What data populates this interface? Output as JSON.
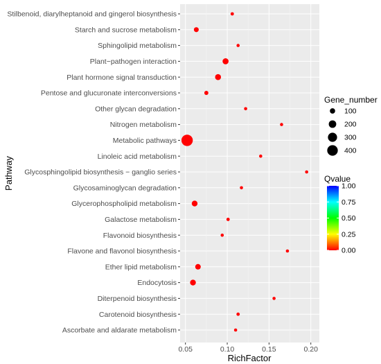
{
  "chart_data": {
    "type": "scatter",
    "xlabel": "RichFactor",
    "ylabel": "Pathway",
    "xlim": [
      0.04,
      0.2
    ],
    "xticks": [
      "0.05",
      "0.10",
      "0.15",
      "0.20"
    ],
    "xtick_values": [
      0.05,
      0.1,
      0.15,
      0.2
    ],
    "grid": true,
    "legend_placement": "right",
    "categories": [
      "Stilbenoid, diarylheptanoid and gingerol biosynthesis",
      "Starch and sucrose metabolism",
      "Sphingolipid metabolism",
      "Plant−pathogen interaction",
      "Plant hormone signal transduction",
      "Pentose and glucuronate interconversions",
      "Other glycan degradation",
      "Nitrogen metabolism",
      "Metabolic pathways",
      "Linoleic acid metabolism",
      "Glycosphingolipid biosynthesis − ganglio series",
      "Glycosaminoglycan degradation",
      "Glycerophospholipid metabolism",
      "Galactose metabolism",
      "Flavonoid biosynthesis",
      "Flavone and flavonol biosynthesis",
      "Ether lipid metabolism",
      "Endocytosis",
      "Diterpenoid biosynthesis",
      "Carotenoid biosynthesis",
      "Ascorbate and aldarate metabolism"
    ],
    "points": [
      {
        "pathway": "Stilbenoid, diarylheptanoid and gingerol biosynthesis",
        "rich_factor": 0.106,
        "gene_number": 40,
        "qvalue": 0.0
      },
      {
        "pathway": "Starch and sucrose metabolism",
        "rich_factor": 0.063,
        "gene_number": 85,
        "qvalue": 0.0
      },
      {
        "pathway": "Sphingolipid metabolism",
        "rich_factor": 0.113,
        "gene_number": 22,
        "qvalue": 0.0
      },
      {
        "pathway": "Plant−pathogen interaction",
        "rich_factor": 0.098,
        "gene_number": 130,
        "qvalue": 0.0
      },
      {
        "pathway": "Plant hormone signal transduction",
        "rich_factor": 0.089,
        "gene_number": 125,
        "qvalue": 0.0
      },
      {
        "pathway": "Pentose and glucuronate interconversions",
        "rich_factor": 0.075,
        "gene_number": 60,
        "qvalue": 0.0
      },
      {
        "pathway": "Other glycan degradation",
        "rich_factor": 0.122,
        "gene_number": 35,
        "qvalue": 0.0
      },
      {
        "pathway": "Nitrogen metabolism",
        "rich_factor": 0.165,
        "gene_number": 30,
        "qvalue": 0.0
      },
      {
        "pathway": "Metabolic pathways",
        "rich_factor": 0.052,
        "gene_number": 460,
        "qvalue": 0.0
      },
      {
        "pathway": "Linoleic acid metabolism",
        "rich_factor": 0.14,
        "gene_number": 12,
        "qvalue": 0.0
      },
      {
        "pathway": "Glycosphingolipid biosynthesis − ganglio series",
        "rich_factor": 0.195,
        "gene_number": 15,
        "qvalue": 0.0
      },
      {
        "pathway": "Glycosaminoglycan degradation",
        "rich_factor": 0.117,
        "gene_number": 20,
        "qvalue": 0.0
      },
      {
        "pathway": "Glycerophospholipid metabolism",
        "rich_factor": 0.061,
        "gene_number": 120,
        "qvalue": 0.0
      },
      {
        "pathway": "Galactose metabolism",
        "rich_factor": 0.101,
        "gene_number": 40,
        "qvalue": 0.0
      },
      {
        "pathway": "Flavonoid biosynthesis",
        "rich_factor": 0.094,
        "gene_number": 25,
        "qvalue": 0.0
      },
      {
        "pathway": "Flavone and flavonol biosynthesis",
        "rich_factor": 0.172,
        "gene_number": 25,
        "qvalue": 0.0
      },
      {
        "pathway": "Ether lipid metabolism",
        "rich_factor": 0.065,
        "gene_number": 110,
        "qvalue": 0.0
      },
      {
        "pathway": "Endocytosis",
        "rich_factor": 0.059,
        "gene_number": 120,
        "qvalue": 0.0
      },
      {
        "pathway": "Diterpenoid biosynthesis",
        "rich_factor": 0.156,
        "gene_number": 20,
        "qvalue": 0.0
      },
      {
        "pathway": "Carotenoid biosynthesis",
        "rich_factor": 0.113,
        "gene_number": 40,
        "qvalue": 0.0
      },
      {
        "pathway": "Ascorbate and aldarate metabolism",
        "rich_factor": 0.11,
        "gene_number": 35,
        "qvalue": 0.0
      }
    ],
    "size_legend": {
      "title": "Gene_number",
      "entries": [
        {
          "label": "100",
          "value": 100
        },
        {
          "label": "200",
          "value": 200
        },
        {
          "label": "300",
          "value": 300
        },
        {
          "label": "400",
          "value": 400
        }
      ]
    },
    "color_legend": {
      "title": "Qvalue",
      "range": [
        0.0,
        1.0
      ],
      "ticks": [
        "1.00",
        "0.75",
        "0.50",
        "0.25",
        "0.00"
      ],
      "tick_values": [
        1.0,
        0.75,
        0.5,
        0.25,
        0.0
      ],
      "colors": [
        "#ff0000",
        "#ffff00",
        "#00ff00",
        "#00ffff",
        "#0000ff"
      ]
    },
    "colors": {
      "panel_background": "#ebebeb",
      "grid_major": "#ffffff",
      "point_low_q": "#ff0000"
    }
  }
}
